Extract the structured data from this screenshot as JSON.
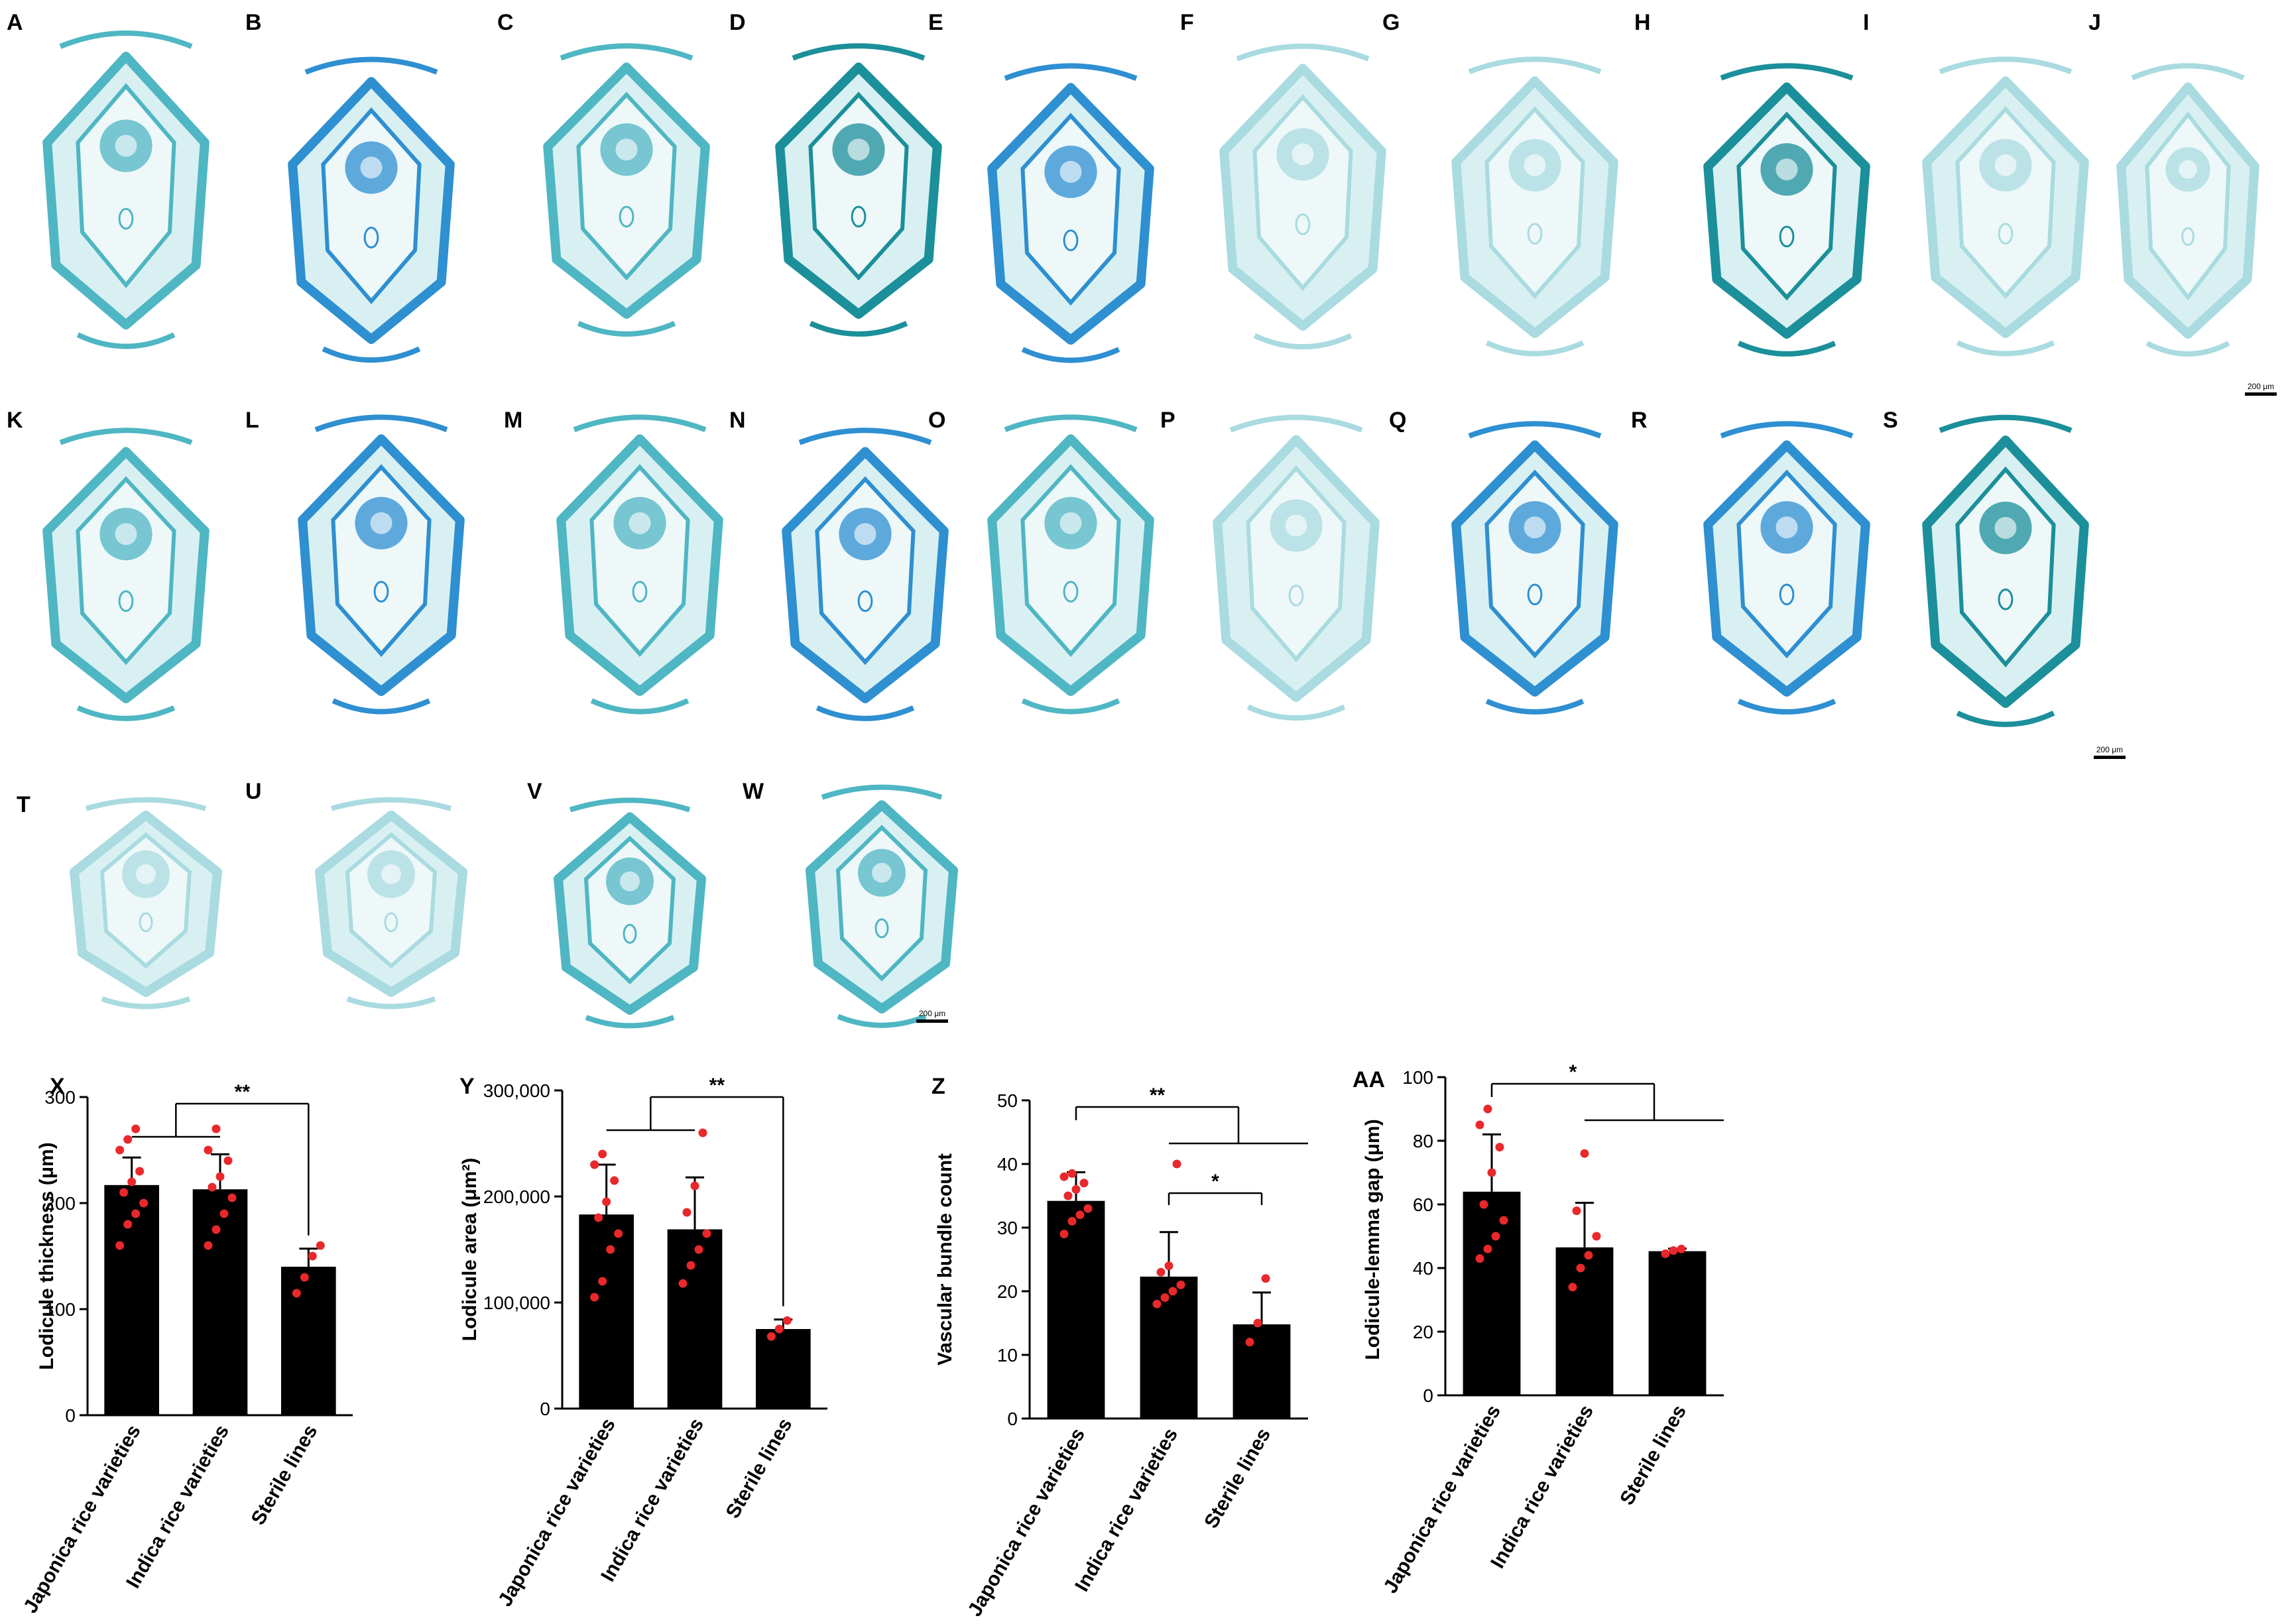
{
  "panels": [
    "A",
    "B",
    "C",
    "D",
    "E",
    "F",
    "G",
    "H",
    "I",
    "J",
    "K",
    "L",
    "M",
    "N",
    "O",
    "P",
    "Q",
    "R",
    "S",
    "T",
    "U",
    "V",
    "W"
  ],
  "scale_bar_label": "200 μm",
  "colors": {
    "stain_light": "#a9dbe0",
    "stain_mid": "#4fb6c3",
    "stain_dark": "#1b8f9a",
    "stain_blue": "#2e8fd1",
    "bar": "#000000",
    "points": "#e8282b"
  },
  "chart_data": [
    {
      "panel": "X",
      "type": "bar",
      "categories": [
        "Japonica rice varieties",
        "Indica rice varieties",
        "Sterile lines"
      ],
      "values": [
        217,
        213,
        140
      ],
      "errors": [
        26,
        33,
        17
      ],
      "points": [
        [
          160,
          180,
          190,
          200,
          210,
          220,
          230,
          250,
          260,
          270
        ],
        [
          160,
          175,
          190,
          205,
          215,
          225,
          240,
          250,
          270
        ],
        [
          115,
          130,
          150,
          160
        ]
      ],
      "ylabel": "Lodicule thickness (μm)",
      "ylim": [
        0,
        300
      ],
      "yticks": [
        0,
        100,
        200,
        300
      ],
      "ytick_labels": [
        "0",
        "100",
        "200",
        "300"
      ],
      "significance": [
        {
          "label": "**",
          "from": [
            0,
            1
          ],
          "to": 2
        }
      ]
    },
    {
      "panel": "Y",
      "type": "bar",
      "categories": [
        "Japonica rice varieties",
        "Indica rice varieties",
        "Sterile lines"
      ],
      "values": [
        183000,
        169000,
        75000
      ],
      "errors": [
        47000,
        49000,
        9000
      ],
      "points": [
        [
          105000,
          120000,
          150000,
          165000,
          180000,
          195000,
          215000,
          230000,
          240000
        ],
        [
          118000,
          135000,
          150000,
          165000,
          185000,
          210000,
          260000
        ],
        [
          68000,
          75000,
          83000
        ]
      ],
      "ylabel": "Lodicule area (μm²)",
      "ylim": [
        0,
        300000
      ],
      "yticks": [
        0,
        100000,
        200000,
        300000
      ],
      "ytick_labels": [
        "0",
        "100,000",
        "200,000",
        "300,000"
      ],
      "significance": [
        {
          "label": "**",
          "from": [
            0,
            1
          ],
          "to": 2
        }
      ]
    },
    {
      "panel": "Z",
      "type": "bar",
      "categories": [
        "Japonica rice varieties",
        "Indica rice varieties",
        "Sterile lines"
      ],
      "values": [
        34.2,
        22.3,
        14.8
      ],
      "errors": [
        4.5,
        7.0,
        5.0
      ],
      "points": [
        [
          29,
          31,
          32,
          33,
          35,
          36,
          37,
          38,
          38.5
        ],
        [
          18,
          19,
          20,
          21,
          23,
          24,
          40
        ],
        [
          12,
          15,
          22
        ]
      ],
      "ylabel": "Vascular bundle count",
      "ylim": [
        0,
        50
      ],
      "yticks": [
        0,
        10,
        20,
        30,
        40,
        50
      ],
      "ytick_labels": [
        "0",
        "10",
        "20",
        "30",
        "40",
        "50"
      ],
      "significance": [
        {
          "label": "**",
          "from": [
            0
          ],
          "to": [
            1,
            2
          ]
        },
        {
          "label": "*",
          "from": [
            1
          ],
          "to": 2
        }
      ]
    },
    {
      "panel": "AA",
      "type": "bar",
      "categories": [
        "Japonica rice varieties",
        "Indica rice varieties",
        "Sterile lines"
      ],
      "values": [
        64,
        46.5,
        45.3
      ],
      "errors": [
        18,
        14,
        0.8
      ],
      "points": [
        [
          43,
          46,
          50,
          55,
          60,
          70,
          78,
          85,
          90
        ],
        [
          34,
          40,
          44,
          50,
          58,
          76
        ],
        [
          44.5,
          45.5,
          46
        ]
      ],
      "ylabel": "Lodicule-lemma gap (μm)",
      "ylim": [
        0,
        100
      ],
      "yticks": [
        0,
        20,
        40,
        60,
        80,
        100
      ],
      "ytick_labels": [
        "0",
        "20",
        "40",
        "60",
        "80",
        "100"
      ],
      "significance": [
        {
          "label": "*",
          "from": [
            0
          ],
          "to": [
            1,
            2
          ]
        }
      ]
    }
  ]
}
